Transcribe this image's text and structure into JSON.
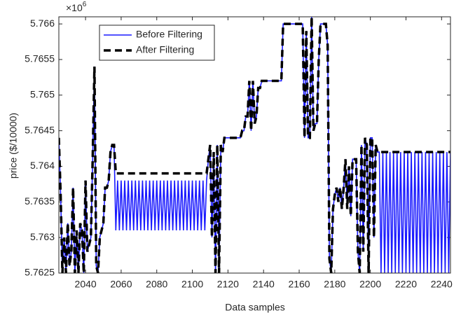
{
  "chart_data": {
    "type": "line",
    "xlabel": "Data samples",
    "ylabel": "price ($/10000)",
    "y_multiplier": {
      "base": "×10",
      "exponent": "6"
    },
    "xlim": [
      2025,
      2245
    ],
    "ylim": [
      5.7625,
      5.7661
    ],
    "xticks": [
      2040,
      2060,
      2080,
      2100,
      2120,
      2140,
      2160,
      2180,
      2200,
      2220,
      2240
    ],
    "yticks": [
      5.7625,
      5.763,
      5.7635,
      5.764,
      5.7645,
      5.765,
      5.7655,
      5.766
    ],
    "x": [
      2025,
      2026,
      2027,
      2028,
      2029,
      2030,
      2031,
      2032,
      2033,
      2034,
      2035,
      2036,
      2037,
      2038,
      2039,
      2040,
      2041,
      2042,
      2043,
      2044,
      2045,
      2046,
      2047,
      2048,
      2049,
      2050,
      2051,
      2052,
      2053,
      2054,
      2055,
      2056,
      2057,
      2058,
      2059,
      2060,
      2061,
      2062,
      2063,
      2064,
      2065,
      2066,
      2067,
      2068,
      2069,
      2070,
      2071,
      2072,
      2073,
      2074,
      2075,
      2076,
      2077,
      2078,
      2079,
      2080,
      2081,
      2082,
      2083,
      2084,
      2085,
      2086,
      2087,
      2088,
      2089,
      2090,
      2091,
      2092,
      2093,
      2094,
      2095,
      2096,
      2097,
      2098,
      2099,
      2100,
      2101,
      2102,
      2103,
      2104,
      2105,
      2106,
      2107,
      2108,
      2109,
      2110,
      2111,
      2112,
      2113,
      2114,
      2115,
      2116,
      2117,
      2118,
      2119,
      2120,
      2121,
      2122,
      2123,
      2124,
      2125,
      2126,
      2127,
      2128,
      2129,
      2130,
      2131,
      2132,
      2133,
      2134,
      2135,
      2136,
      2137,
      2138,
      2139,
      2140,
      2141,
      2142,
      2143,
      2144,
      2145,
      2146,
      2147,
      2148,
      2149,
      2150,
      2151,
      2152,
      2153,
      2154,
      2155,
      2156,
      2157,
      2158,
      2159,
      2160,
      2161,
      2162,
      2163,
      2164,
      2165,
      2166,
      2167,
      2168,
      2169,
      2170,
      2171,
      2172,
      2173,
      2174,
      2175,
      2176,
      2177,
      2178,
      2179,
      2180,
      2181,
      2182,
      2183,
      2184,
      2185,
      2186,
      2187,
      2188,
      2189,
      2190,
      2191,
      2192,
      2193,
      2194,
      2195,
      2196,
      2197,
      2198,
      2199,
      2200,
      2201,
      2202,
      2203,
      2204,
      2205,
      2206,
      2207,
      2208,
      2209,
      2210,
      2211,
      2212,
      2213,
      2214,
      2215,
      2216,
      2217,
      2218,
      2219,
      2220,
      2221,
      2222,
      2223,
      2224,
      2225,
      2226,
      2227,
      2228,
      2229,
      2230,
      2231,
      2232,
      2233,
      2234,
      2235,
      2236,
      2237,
      2238,
      2239,
      2240,
      2241,
      2242,
      2243,
      2244,
      2245
    ],
    "series": [
      {
        "name": "Before Filtering",
        "color": "#1a1aff",
        "dashed": false,
        "values": [
          5.7644,
          5.7636,
          5.7625,
          5.763,
          5.7625,
          5.7632,
          5.7626,
          5.7628,
          5.7637,
          5.7625,
          5.7631,
          5.7625,
          5.7632,
          5.7631,
          5.7625,
          5.7638,
          5.7628,
          5.7629,
          5.763,
          5.7641,
          5.7654,
          5.7626,
          5.7625,
          5.763,
          5.7631,
          5.7632,
          5.7637,
          5.7637,
          5.7638,
          5.7642,
          5.7643,
          5.7643,
          5.7631,
          5.7638,
          5.7631,
          5.7638,
          5.7631,
          5.7638,
          5.7631,
          5.7638,
          5.7631,
          5.7638,
          5.7631,
          5.7638,
          5.7631,
          5.7638,
          5.7631,
          5.7638,
          5.7631,
          5.7638,
          5.7631,
          5.7638,
          5.7631,
          5.7638,
          5.7631,
          5.7638,
          5.7631,
          5.7638,
          5.7631,
          5.7638,
          5.7631,
          5.7638,
          5.7631,
          5.7638,
          5.7631,
          5.7638,
          5.7631,
          5.7638,
          5.7631,
          5.7638,
          5.7631,
          5.7638,
          5.7631,
          5.7638,
          5.7631,
          5.7638,
          5.7631,
          5.7638,
          5.7631,
          5.7638,
          5.7631,
          5.7638,
          5.7631,
          5.7638,
          5.7641,
          5.7643,
          5.763,
          5.7642,
          5.7625,
          5.7643,
          5.7625,
          5.7643,
          5.7642,
          5.7644,
          5.7644,
          5.7644,
          5.7644,
          5.7644,
          5.7644,
          5.7644,
          5.7644,
          5.7644,
          5.7644,
          5.7645,
          5.7645,
          5.7647,
          5.7647,
          5.7652,
          5.7645,
          5.7652,
          5.7646,
          5.7647,
          5.7651,
          5.7651,
          5.7652,
          5.7652,
          5.7652,
          5.7652,
          5.7652,
          5.7652,
          5.7652,
          5.7652,
          5.7652,
          5.7652,
          5.7652,
          5.7652,
          5.766,
          5.766,
          5.766,
          5.766,
          5.766,
          5.766,
          5.766,
          5.766,
          5.766,
          5.766,
          5.766,
          5.766,
          5.7644,
          5.7659,
          5.7644,
          5.7644,
          5.7661,
          5.7645,
          5.7646,
          5.7646,
          5.7655,
          5.766,
          5.766,
          5.766,
          5.766,
          5.7657,
          5.7627,
          5.7625,
          5.7634,
          5.7636,
          5.7637,
          5.7635,
          5.7637,
          5.7634,
          5.7637,
          5.7641,
          5.7634,
          5.764,
          5.7633,
          5.7641,
          5.7641,
          5.7641,
          5.7628,
          5.7625,
          5.7643,
          5.7628,
          5.7644,
          5.7643,
          5.7625,
          5.7644,
          5.7644,
          5.763,
          5.7643,
          5.7642,
          5.7642,
          5.7625,
          5.7642,
          5.7625,
          5.7642,
          5.7625,
          5.7642,
          5.7625,
          5.7642,
          5.7625,
          5.7642,
          5.7625,
          5.7642,
          5.7625,
          5.7642,
          5.7625,
          5.7642,
          5.7625,
          5.7642,
          5.7625,
          5.7642,
          5.7625,
          5.7642,
          5.7625,
          5.7642,
          5.7625,
          5.7642,
          5.7625,
          5.7642,
          5.7625,
          5.7642,
          5.7625,
          5.7642,
          5.7625,
          5.7642,
          5.7625,
          5.7642,
          5.7625,
          5.7642,
          5.7625,
          5.7642
        ]
      },
      {
        "name": "After Filtering",
        "color": "#000000",
        "dashed": true,
        "values": [
          5.7644,
          5.7636,
          5.7625,
          5.763,
          5.7625,
          5.7632,
          5.7626,
          5.7628,
          5.7637,
          5.7625,
          5.7631,
          5.7625,
          5.7632,
          5.7631,
          5.7625,
          5.7638,
          5.7628,
          5.7629,
          5.763,
          5.7641,
          5.7654,
          5.7626,
          5.7625,
          5.763,
          5.7631,
          5.7632,
          5.7637,
          5.7637,
          5.7638,
          5.7642,
          5.7643,
          5.7643,
          5.7639,
          5.7639,
          5.7639,
          5.7639,
          5.7639,
          5.7639,
          5.7639,
          5.7639,
          5.7639,
          5.7639,
          5.7639,
          5.7639,
          5.7639,
          5.7639,
          5.7639,
          5.7639,
          5.7639,
          5.7639,
          5.7639,
          5.7639,
          5.7639,
          5.7639,
          5.7639,
          5.7639,
          5.7639,
          5.7639,
          5.7639,
          5.7639,
          5.7639,
          5.7639,
          5.7639,
          5.7639,
          5.7639,
          5.7639,
          5.7639,
          5.7639,
          5.7639,
          5.7639,
          5.7639,
          5.7639,
          5.7639,
          5.7639,
          5.7639,
          5.7639,
          5.7639,
          5.7639,
          5.7639,
          5.7639,
          5.7639,
          5.7639,
          5.7639,
          5.7639,
          5.7641,
          5.7643,
          5.763,
          5.7642,
          5.7625,
          5.7643,
          5.7625,
          5.7643,
          5.7642,
          5.7644,
          5.7644,
          5.7644,
          5.7644,
          5.7644,
          5.7644,
          5.7644,
          5.7644,
          5.7644,
          5.7644,
          5.7645,
          5.7645,
          5.7647,
          5.7647,
          5.7652,
          5.7645,
          5.7652,
          5.7646,
          5.7647,
          5.7651,
          5.7651,
          5.7652,
          5.7652,
          5.7652,
          5.7652,
          5.7652,
          5.7652,
          5.7652,
          5.7652,
          5.7652,
          5.7652,
          5.7652,
          5.7652,
          5.766,
          5.766,
          5.766,
          5.766,
          5.766,
          5.766,
          5.766,
          5.766,
          5.766,
          5.766,
          5.766,
          5.766,
          5.7644,
          5.7659,
          5.7644,
          5.7644,
          5.7661,
          5.7645,
          5.7646,
          5.7646,
          5.7655,
          5.766,
          5.766,
          5.766,
          5.766,
          5.7657,
          5.7627,
          5.7625,
          5.7634,
          5.7636,
          5.7637,
          5.7635,
          5.7637,
          5.7634,
          5.7637,
          5.7641,
          5.7634,
          5.764,
          5.7633,
          5.7641,
          5.7641,
          5.7641,
          5.7628,
          5.7625,
          5.7643,
          5.7628,
          5.7644,
          5.7643,
          5.7625,
          5.7644,
          5.7644,
          5.763,
          5.7643,
          5.7642,
          5.7642,
          5.7642,
          5.7642,
          5.7642,
          5.7642,
          5.7642,
          5.7642,
          5.7642,
          5.7642,
          5.7642,
          5.7642,
          5.7642,
          5.7642,
          5.7642,
          5.7642,
          5.7642,
          5.7642,
          5.7642,
          5.7642,
          5.7642,
          5.7642,
          5.7642,
          5.7642,
          5.7642,
          5.7642,
          5.7642,
          5.7642,
          5.7642,
          5.7642,
          5.7642,
          5.7642,
          5.7642,
          5.7642,
          5.7642,
          5.7642,
          5.7642,
          5.7642,
          5.7642,
          5.7642,
          5.7642,
          5.7642
        ]
      }
    ]
  }
}
